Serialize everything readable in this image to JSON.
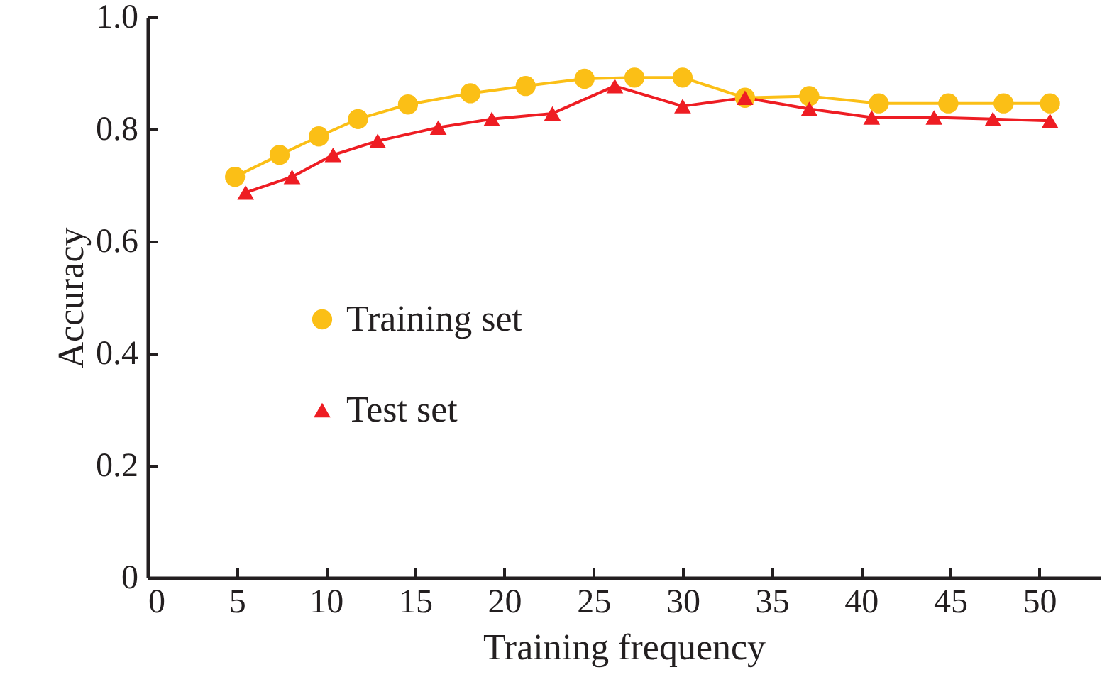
{
  "chart_data": {
    "type": "line",
    "xlabel": "Training frequency",
    "ylabel": "Accuracy",
    "xlim": [
      0,
      53.4
    ],
    "xticks": [
      0,
      5,
      10,
      15,
      20,
      25,
      30,
      35,
      40,
      45,
      50
    ],
    "ylim": [
      0,
      1.0
    ],
    "yticks": [
      0,
      0.2,
      0.4,
      0.6,
      0.8,
      {
        "value": 1,
        "label": "1.0"
      }
    ],
    "grid": false,
    "legend": "left",
    "series": [
      {
        "name": "Training set",
        "color": "#fbbf16",
        "marker": "circle",
        "x": [
          4.9,
          7.4,
          9.6,
          11.8,
          14.6,
          18.1,
          21.2,
          24.5,
          27.3,
          30.0,
          33.5,
          37.1,
          41.0,
          44.9,
          48.0,
          50.6
        ],
        "values": [
          0.715,
          0.754,
          0.787,
          0.818,
          0.844,
          0.864,
          0.877,
          0.89,
          0.892,
          0.892,
          0.856,
          0.859,
          0.846,
          0.846,
          0.846,
          0.846
        ]
      },
      {
        "name": "Test set",
        "color": "#ee1d23",
        "marker": "triangle",
        "x": [
          5.5,
          8.1,
          10.4,
          12.9,
          16.3,
          19.3,
          22.7,
          26.2,
          30.0,
          33.5,
          37.1,
          40.6,
          44.1,
          47.4,
          50.6
        ],
        "values": [
          0.687,
          0.715,
          0.754,
          0.779,
          0.803,
          0.818,
          0.828,
          0.877,
          0.841,
          0.856,
          0.836,
          0.821,
          0.821,
          0.818,
          0.815
        ]
      }
    ]
  }
}
